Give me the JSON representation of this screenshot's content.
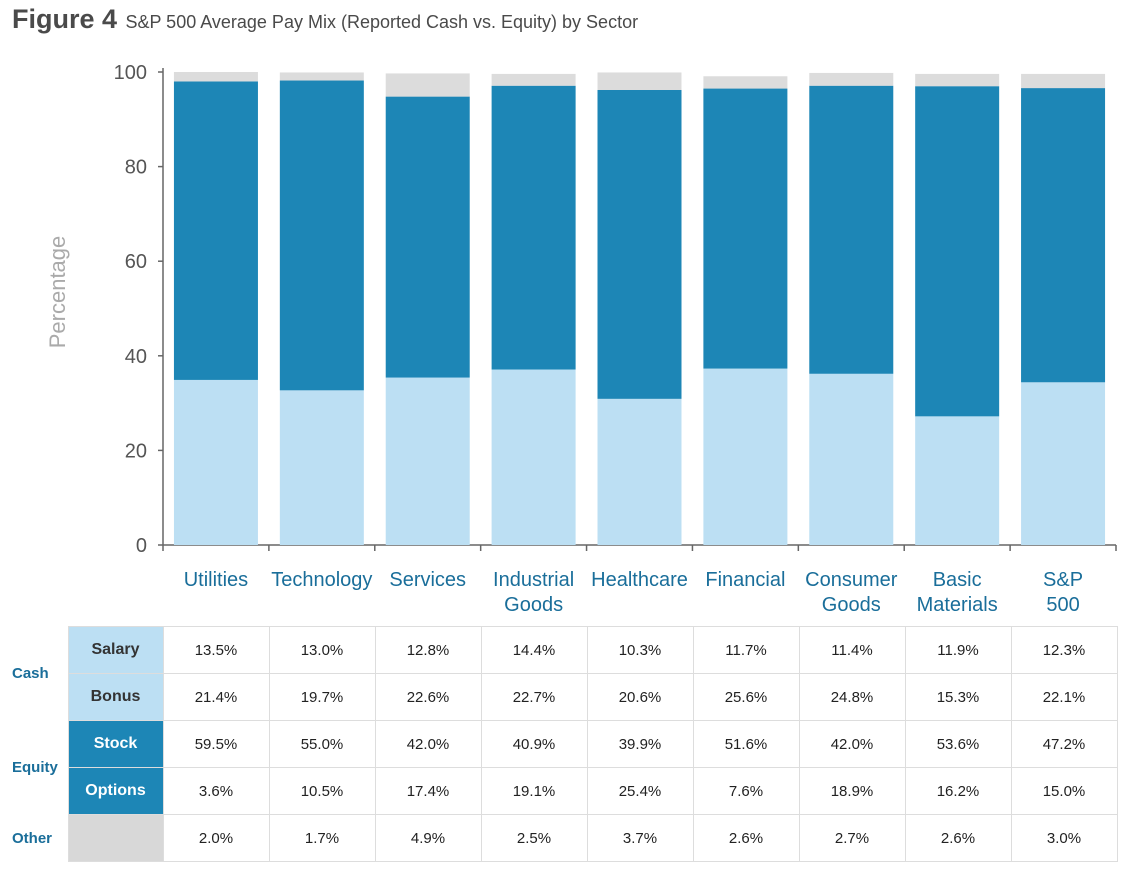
{
  "title": {
    "figure": "Figure 4",
    "subtitle": "S&P 500 Average Pay Mix (Reported Cash vs. Equity) by Sector"
  },
  "colors": {
    "cash": "#bcdff3",
    "equity": "#1d86b6",
    "other": "#dcdcdc",
    "sector_label": "#1a6e9a",
    "axis": "#666666"
  },
  "chart_data": {
    "type": "bar",
    "stacked": true,
    "categories": [
      "Utilities",
      "Technology",
      "Services",
      "Industrial Goods",
      "Healthcare",
      "Financial",
      "Consumer Goods",
      "Basic Materials",
      "S&P 500"
    ],
    "series": [
      {
        "name": "Cash",
        "values": [
          34.9,
          32.7,
          35.4,
          37.1,
          30.9,
          37.3,
          36.2,
          27.2,
          34.4
        ]
      },
      {
        "name": "Equity",
        "values": [
          63.1,
          65.5,
          59.4,
          60.0,
          65.3,
          59.2,
          60.9,
          69.8,
          62.2
        ]
      },
      {
        "name": "Other",
        "values": [
          2.0,
          1.7,
          4.9,
          2.5,
          3.7,
          2.6,
          2.7,
          2.6,
          3.0
        ]
      }
    ],
    "xlabel": "",
    "ylabel": "Percentage",
    "ylim": [
      0,
      100
    ],
    "yticks": [
      "0",
      "20",
      "40",
      "60",
      "80",
      "100"
    ],
    "grid": false,
    "legend": "none"
  },
  "table": {
    "groups": {
      "cash": "Cash",
      "equity": "Equity",
      "other": "Other"
    },
    "rows": [
      {
        "label": "Salary",
        "values": [
          "13.5%",
          "13.0%",
          "12.8%",
          "14.4%",
          "10.3%",
          "11.7%",
          "11.4%",
          "11.9%",
          "12.3%"
        ]
      },
      {
        "label": "Bonus",
        "values": [
          "21.4%",
          "19.7%",
          "22.6%",
          "22.7%",
          "20.6%",
          "25.6%",
          "24.8%",
          "15.3%",
          "22.1%"
        ]
      },
      {
        "label": "Stock",
        "values": [
          "59.5%",
          "55.0%",
          "42.0%",
          "40.9%",
          "39.9%",
          "51.6%",
          "42.0%",
          "53.6%",
          "47.2%"
        ]
      },
      {
        "label": "Options",
        "values": [
          "3.6%",
          "10.5%",
          "17.4%",
          "19.1%",
          "25.4%",
          "7.6%",
          "18.9%",
          "16.2%",
          "15.0%"
        ]
      },
      {
        "label": "",
        "values": [
          "2.0%",
          "1.7%",
          "4.9%",
          "2.5%",
          "3.7%",
          "2.6%",
          "2.7%",
          "2.6%",
          "3.0%"
        ]
      }
    ]
  }
}
